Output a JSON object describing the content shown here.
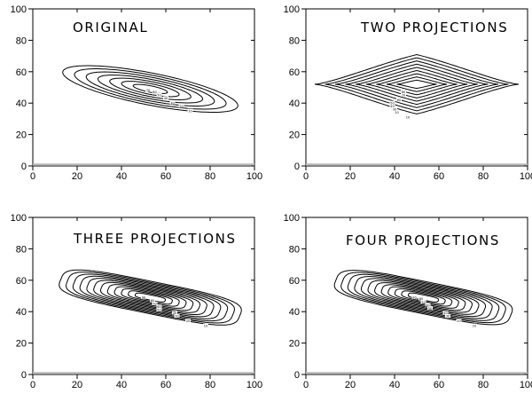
{
  "chart_data": [
    {
      "type": "contour",
      "title": "ORIGINAL",
      "xlim": [
        0,
        100
      ],
      "ylim": [
        0,
        100
      ],
      "x_ticks": [
        0,
        20,
        40,
        60,
        80,
        100
      ],
      "y_ticks": [
        0,
        20,
        40,
        60,
        80,
        100
      ],
      "x_tick_labels": [
        "0",
        "20",
        "40",
        "60",
        "80",
        "100"
      ],
      "y_tick_labels": [
        "0",
        "20",
        "40",
        "60",
        "80",
        "100"
      ],
      "shape": "ellipse",
      "center": [
        53,
        49
      ],
      "angle_deg": -16,
      "outer_semi_axes": [
        41,
        10
      ],
      "inner_semi_axes": [
        8,
        2
      ],
      "contour_count": 7,
      "contour_labels": [
        {
          "text": "10",
          "x": 71,
          "y": 35
        },
        {
          "text": "20",
          "x": 67,
          "y": 38
        },
        {
          "text": "30",
          "x": 63,
          "y": 40
        },
        {
          "text": "40",
          "x": 60,
          "y": 43
        },
        {
          "text": "50",
          "x": 57,
          "y": 45
        },
        {
          "text": "60",
          "x": 55,
          "y": 47
        },
        {
          "text": "70",
          "x": 52,
          "y": 48
        }
      ]
    },
    {
      "type": "contour",
      "title": "TWO PROJECTIONS",
      "xlim": [
        0,
        100
      ],
      "ylim": [
        0,
        100
      ],
      "x_ticks": [
        0,
        20,
        40,
        60,
        80,
        100
      ],
      "y_ticks": [
        0,
        20,
        40,
        60,
        80,
        100
      ],
      "x_tick_labels": [
        "0",
        "20",
        "40",
        "60",
        "80",
        "100"
      ],
      "y_tick_labels": [
        "0",
        "20",
        "40",
        "60",
        "80",
        "100"
      ],
      "shape": "lens",
      "center": [
        50,
        52
      ],
      "angle_deg": 0,
      "outer_semi_axes": [
        46,
        18
      ],
      "inner_semi_axes": [
        9,
        2.5
      ],
      "contour_count": 9,
      "contour_labels": [
        {
          "text": "10",
          "x": 46,
          "y": 31
        },
        {
          "text": "20",
          "x": 41,
          "y": 34
        },
        {
          "text": "30",
          "x": 40,
          "y": 36
        },
        {
          "text": "40",
          "x": 39,
          "y": 38
        },
        {
          "text": "50",
          "x": 39,
          "y": 40
        },
        {
          "text": "60",
          "x": 42,
          "y": 42
        },
        {
          "text": "70",
          "x": 44,
          "y": 45
        },
        {
          "text": "80",
          "x": 44,
          "y": 47
        }
      ]
    },
    {
      "type": "contour",
      "title": "THREE PROJECTIONS",
      "xlim": [
        0,
        100
      ],
      "ylim": [
        0,
        100
      ],
      "x_ticks": [
        0,
        20,
        40,
        60,
        80,
        100
      ],
      "y_ticks": [
        0,
        20,
        40,
        60,
        80,
        100
      ],
      "x_tick_labels": [
        "0",
        "20",
        "40",
        "60",
        "80",
        "100"
      ],
      "y_tick_labels": [
        "0",
        "20",
        "40",
        "60",
        "80",
        "100"
      ],
      "shape": "superellipse",
      "center": [
        53,
        49
      ],
      "angle_deg": -16,
      "outer_semi_axes": [
        42,
        10
      ],
      "inner_semi_axes": [
        7,
        1.6
      ],
      "contour_count": 12,
      "contour_labels": [
        {
          "text": "10",
          "x": 78,
          "y": 31
        },
        {
          "text": "20",
          "x": 70,
          "y": 34
        },
        {
          "text": "30",
          "x": 65,
          "y": 37
        },
        {
          "text": "40",
          "x": 64,
          "y": 39
        },
        {
          "text": "50",
          "x": 57,
          "y": 41
        },
        {
          "text": "60",
          "x": 57,
          "y": 43
        },
        {
          "text": "70",
          "x": 55,
          "y": 45
        },
        {
          "text": "80",
          "x": 54,
          "y": 47
        },
        {
          "text": "90",
          "x": 50,
          "y": 49
        }
      ]
    },
    {
      "type": "contour",
      "title": "FOUR PROJECTIONS",
      "xlim": [
        0,
        100
      ],
      "ylim": [
        0,
        100
      ],
      "x_ticks": [
        0,
        20,
        40,
        60,
        80,
        100
      ],
      "y_ticks": [
        0,
        20,
        40,
        60,
        80,
        100
      ],
      "x_tick_labels": [
        "0",
        "20",
        "40",
        "60",
        "80",
        "100"
      ],
      "y_tick_labels": [
        "0",
        "20",
        "40",
        "60",
        "80",
        "100"
      ],
      "shape": "superellipse",
      "center": [
        53,
        49
      ],
      "angle_deg": -16,
      "outer_semi_axes": [
        41,
        10
      ],
      "inner_semi_axes": [
        7,
        1.6
      ],
      "contour_count": 12,
      "contour_labels": [
        {
          "text": "10",
          "x": 76,
          "y": 31
        },
        {
          "text": "20",
          "x": 69,
          "y": 34
        },
        {
          "text": "30",
          "x": 64,
          "y": 37
        },
        {
          "text": "40",
          "x": 63,
          "y": 39
        },
        {
          "text": "50",
          "x": 56,
          "y": 42
        },
        {
          "text": "60",
          "x": 55,
          "y": 44
        },
        {
          "text": "70",
          "x": 53,
          "y": 46
        },
        {
          "text": "80",
          "x": 52,
          "y": 48
        },
        {
          "text": "90",
          "x": 49,
          "y": 49
        }
      ]
    }
  ]
}
